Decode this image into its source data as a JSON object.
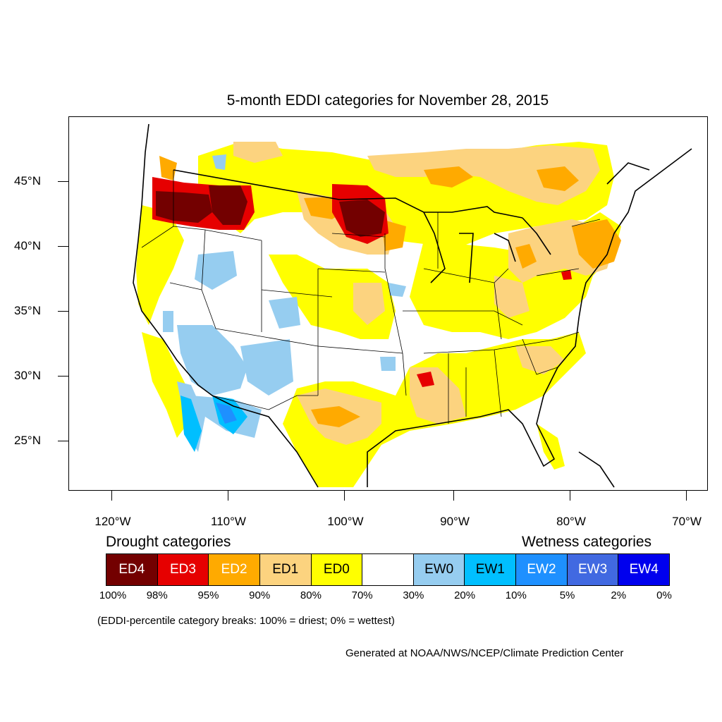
{
  "title": "5-month EDDI categories for November 28, 2015",
  "lat_labels": [
    "45°N",
    "40°N",
    "35°N",
    "30°N",
    "25°N"
  ],
  "lon_labels": [
    "120°W",
    "110°W",
    "100°W",
    "90°W",
    "80°W",
    "70°W"
  ],
  "legend": {
    "drought_header": "Drought categories",
    "wetness_header": "Wetness categories",
    "categories": [
      {
        "label": "ED4",
        "color": "#730000",
        "text_color": "#ffffff"
      },
      {
        "label": "ED3",
        "color": "#e60000",
        "text_color": "#ffffff"
      },
      {
        "label": "ED2",
        "color": "#ffaa00",
        "text_color": "#ffffff"
      },
      {
        "label": "ED1",
        "color": "#fcd37f",
        "text_color": "#000000"
      },
      {
        "label": "ED0",
        "color": "#ffff00",
        "text_color": "#000000"
      },
      {
        "label": "",
        "color": "#ffffff",
        "text_color": "#000000"
      },
      {
        "label": "EW0",
        "color": "#96cdf0",
        "text_color": "#000000"
      },
      {
        "label": "EW1",
        "color": "#00bfff",
        "text_color": "#000000"
      },
      {
        "label": "EW2",
        "color": "#1e90ff",
        "text_color": "#ffffff"
      },
      {
        "label": "EW3",
        "color": "#4169e1",
        "text_color": "#ffffff"
      },
      {
        "label": "EW4",
        "color": "#0000ee",
        "text_color": "#ffffff"
      }
    ],
    "breaks": [
      "100%",
      "98%",
      "95%",
      "90%",
      "80%",
      "70%",
      "30%",
      "20%",
      "10%",
      "5%",
      "2%",
      "0%"
    ]
  },
  "note": "(EDDI-percentile category breaks: 100% = driest; 0% = wettest)",
  "credit": "Generated at NOAA/NWS/NCEP/Climate Prediction Center"
}
